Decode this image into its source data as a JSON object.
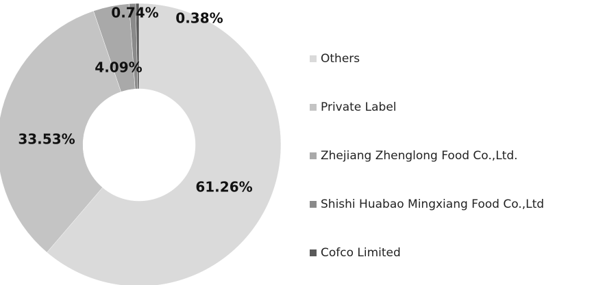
{
  "chart_data": {
    "type": "donut",
    "categories": [
      "Others",
      "Private Label",
      "Zhejiang Zhenglong Food Co.,Ltd.",
      "Shishi Huabao Mingxiang Food Co.,Ltd",
      "Cofco Limited"
    ],
    "values": [
      61.26,
      33.53,
      4.09,
      0.74,
      0.38
    ],
    "value_labels": [
      "61.26%",
      "33.53%",
      "4.09%",
      "0.74%",
      "0.38%"
    ],
    "colors": [
      "#dadada",
      "#c4c4c4",
      "#a9a9a9",
      "#8a8a8a",
      "#5a5a5a"
    ],
    "legend": "right"
  }
}
